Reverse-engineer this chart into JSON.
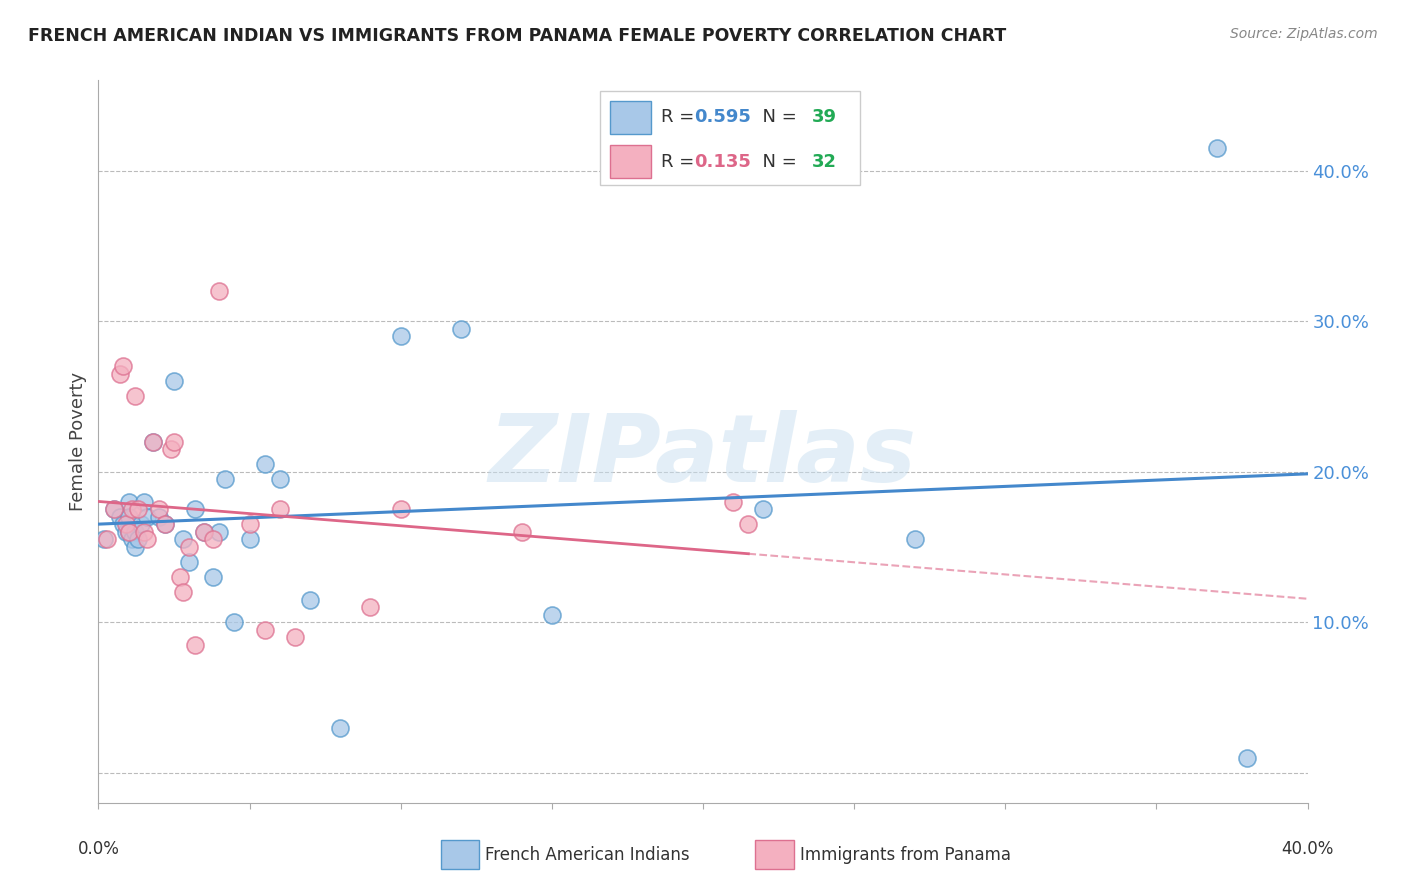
{
  "title": "FRENCH AMERICAN INDIAN VS IMMIGRANTS FROM PANAMA FEMALE POVERTY CORRELATION CHART",
  "source": "Source: ZipAtlas.com",
  "ylabel": "Female Poverty",
  "xlim": [
    0.0,
    0.4
  ],
  "ylim": [
    -0.02,
    0.46
  ],
  "yticks": [
    0.0,
    0.1,
    0.2,
    0.3,
    0.4
  ],
  "ytick_labels": [
    "",
    "10.0%",
    "20.0%",
    "30.0%",
    "40.0%"
  ],
  "xticks": [
    0.0,
    0.05,
    0.1,
    0.15,
    0.2,
    0.25,
    0.3,
    0.35,
    0.4
  ],
  "blue_R": 0.595,
  "blue_N": 39,
  "pink_R": 0.135,
  "pink_N": 32,
  "blue_color": "#a8c8e8",
  "pink_color": "#f4b0c0",
  "blue_edge_color": "#5599cc",
  "pink_edge_color": "#dd7090",
  "blue_line_color": "#4488cc",
  "pink_line_color": "#dd6688",
  "legend_label_blue": "French American Indians",
  "legend_label_pink": "Immigrants from Panama",
  "blue_scatter_x": [
    0.002,
    0.005,
    0.007,
    0.008,
    0.009,
    0.01,
    0.01,
    0.01,
    0.011,
    0.012,
    0.012,
    0.013,
    0.014,
    0.015,
    0.016,
    0.018,
    0.02,
    0.022,
    0.025,
    0.028,
    0.03,
    0.032,
    0.035,
    0.038,
    0.04,
    0.042,
    0.045,
    0.05,
    0.055,
    0.06,
    0.07,
    0.08,
    0.1,
    0.12,
    0.15,
    0.22,
    0.27,
    0.37,
    0.38
  ],
  "blue_scatter_y": [
    0.155,
    0.175,
    0.17,
    0.165,
    0.16,
    0.18,
    0.17,
    0.16,
    0.155,
    0.16,
    0.15,
    0.155,
    0.165,
    0.18,
    0.17,
    0.22,
    0.17,
    0.165,
    0.26,
    0.155,
    0.14,
    0.175,
    0.16,
    0.13,
    0.16,
    0.195,
    0.1,
    0.155,
    0.205,
    0.195,
    0.115,
    0.03,
    0.29,
    0.295,
    0.105,
    0.175,
    0.155,
    0.415,
    0.01
  ],
  "pink_scatter_x": [
    0.003,
    0.005,
    0.007,
    0.008,
    0.009,
    0.01,
    0.011,
    0.012,
    0.013,
    0.015,
    0.016,
    0.018,
    0.02,
    0.022,
    0.024,
    0.025,
    0.027,
    0.028,
    0.03,
    0.032,
    0.035,
    0.038,
    0.04,
    0.05,
    0.055,
    0.06,
    0.065,
    0.09,
    0.1,
    0.14,
    0.21,
    0.215
  ],
  "pink_scatter_y": [
    0.155,
    0.175,
    0.265,
    0.27,
    0.165,
    0.16,
    0.175,
    0.25,
    0.175,
    0.16,
    0.155,
    0.22,
    0.175,
    0.165,
    0.215,
    0.22,
    0.13,
    0.12,
    0.15,
    0.085,
    0.16,
    0.155,
    0.32,
    0.165,
    0.095,
    0.175,
    0.09,
    0.11,
    0.175,
    0.16,
    0.18,
    0.165
  ],
  "watermark": "ZIPatlas",
  "background_color": "#ffffff",
  "grid_color": "#bbbbbb"
}
